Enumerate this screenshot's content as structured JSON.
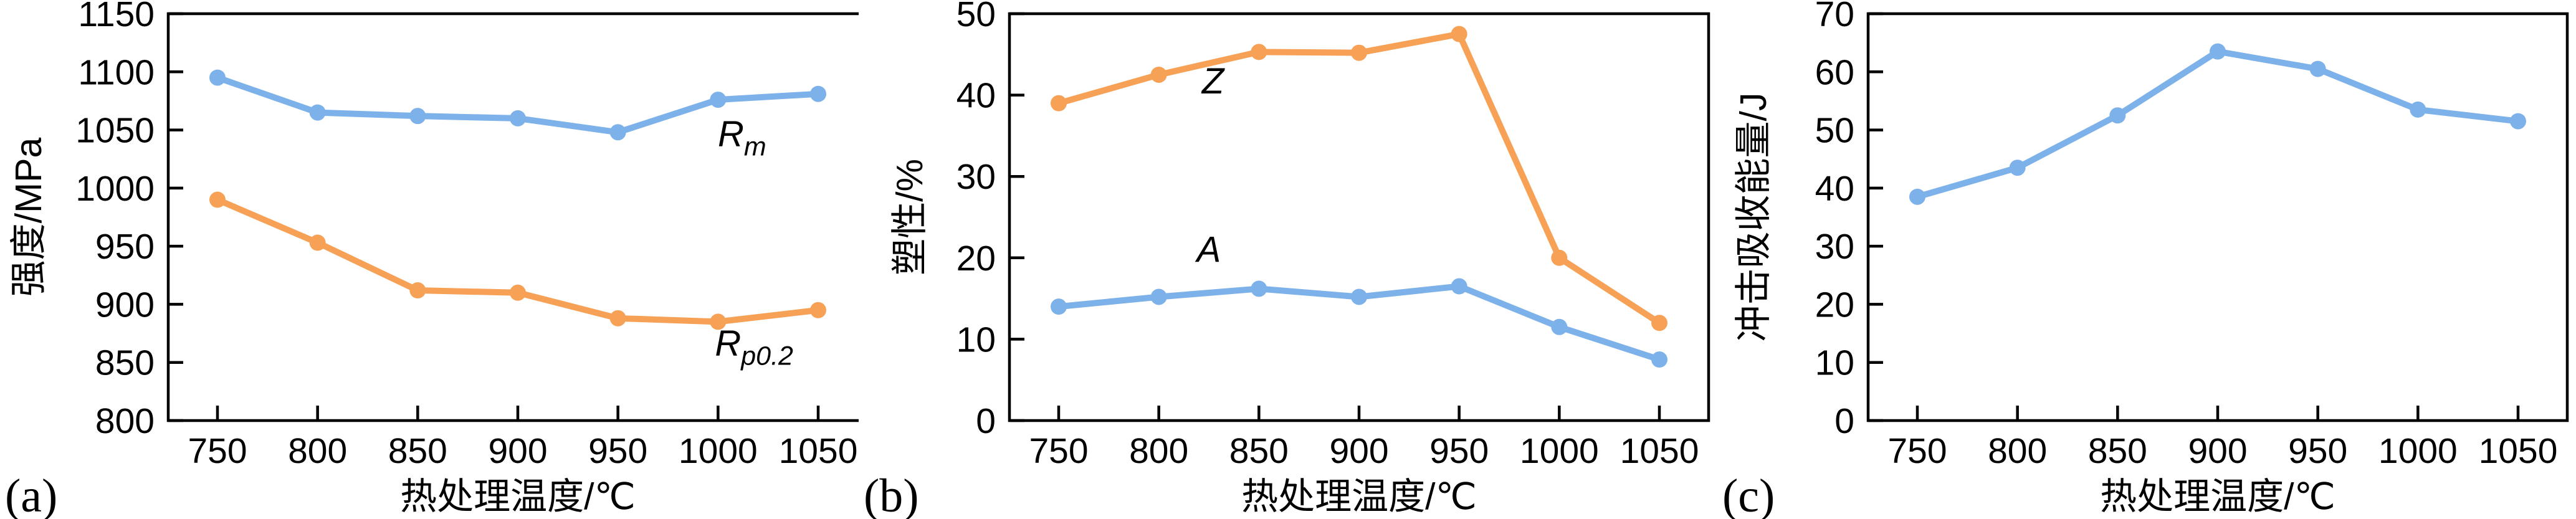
{
  "figure": {
    "background": "#ffffff",
    "panel_count": 3
  },
  "colors": {
    "blue": "#7DB1EA",
    "orange": "#F7A156",
    "axis": "#000000"
  },
  "chart_data": [
    {
      "id": "a",
      "type": "line",
      "panel_label": "(a)",
      "xlabel": "热处理温度/℃",
      "ylabel": "强度/MPa",
      "x": [
        750,
        800,
        850,
        900,
        950,
        1000,
        1050
      ],
      "xtick_labels": [
        "750",
        "800",
        "850",
        "900",
        "950",
        "1000",
        "1050"
      ],
      "xlim": [
        750,
        1050
      ],
      "ylim": [
        800,
        1150
      ],
      "yticks": [
        800,
        850,
        900,
        950,
        1000,
        1050,
        1100,
        1150
      ],
      "grid": false,
      "legend_position": "inline-annotations",
      "series": [
        {
          "name": "Rm",
          "color_key": "blue",
          "values": [
            1095,
            1065,
            1062,
            1060,
            1048,
            1076,
            1081
          ],
          "annotation": {
            "text_main": "R",
            "text_sub": "m",
            "x": 1012,
            "y": 1036
          }
        },
        {
          "name": "Rp0.2",
          "color_key": "orange",
          "values": [
            990,
            953,
            912,
            910,
            888,
            885,
            895
          ],
          "annotation": {
            "text_main": "R",
            "text_sub": "p0.2",
            "x": 1018,
            "y": 856
          }
        }
      ]
    },
    {
      "id": "b",
      "type": "line",
      "panel_label": "(b)",
      "xlabel": "热处理温度/℃",
      "ylabel": "塑性/%",
      "x": [
        750,
        800,
        850,
        900,
        950,
        1000,
        1050
      ],
      "xtick_labels": [
        "750",
        "800",
        "850",
        "900",
        "950",
        "1000",
        "1050"
      ],
      "xlim": [
        750,
        1050
      ],
      "ylim": [
        0,
        50
      ],
      "yticks": [
        0,
        10,
        20,
        30,
        40,
        50
      ],
      "grid": false,
      "legend_position": "inline-annotations",
      "series": [
        {
          "name": "Z",
          "color_key": "orange",
          "values": [
            39,
            42.5,
            45.3,
            45.2,
            47.5,
            20,
            12
          ],
          "annotation": {
            "text_main": "Z",
            "text_sub": "",
            "x": 827,
            "y": 40.2
          }
        },
        {
          "name": "A",
          "color_key": "blue",
          "values": [
            14,
            15.2,
            16.2,
            15.2,
            16.5,
            11.5,
            7.5
          ],
          "annotation": {
            "text_main": "A",
            "text_sub": "",
            "x": 825,
            "y": 19.5
          }
        }
      ]
    },
    {
      "id": "c",
      "type": "line",
      "panel_label": "(c)",
      "xlabel": "热处理温度/℃",
      "ylabel": "冲击吸收能量/J",
      "x": [
        750,
        800,
        850,
        900,
        950,
        1000,
        1050
      ],
      "xtick_labels": [
        "750",
        "800",
        "850",
        "900",
        "950",
        "1000",
        "1050"
      ],
      "xlim": [
        750,
        1050
      ],
      "ylim": [
        0,
        70
      ],
      "yticks": [
        0,
        10,
        20,
        30,
        40,
        50,
        60,
        70
      ],
      "grid": false,
      "legend_position": "none",
      "series": [
        {
          "name": "impact-energy",
          "color_key": "blue",
          "values": [
            38.5,
            43.5,
            52.5,
            63.5,
            60.5,
            53.5,
            51.5
          ]
        }
      ]
    }
  ]
}
